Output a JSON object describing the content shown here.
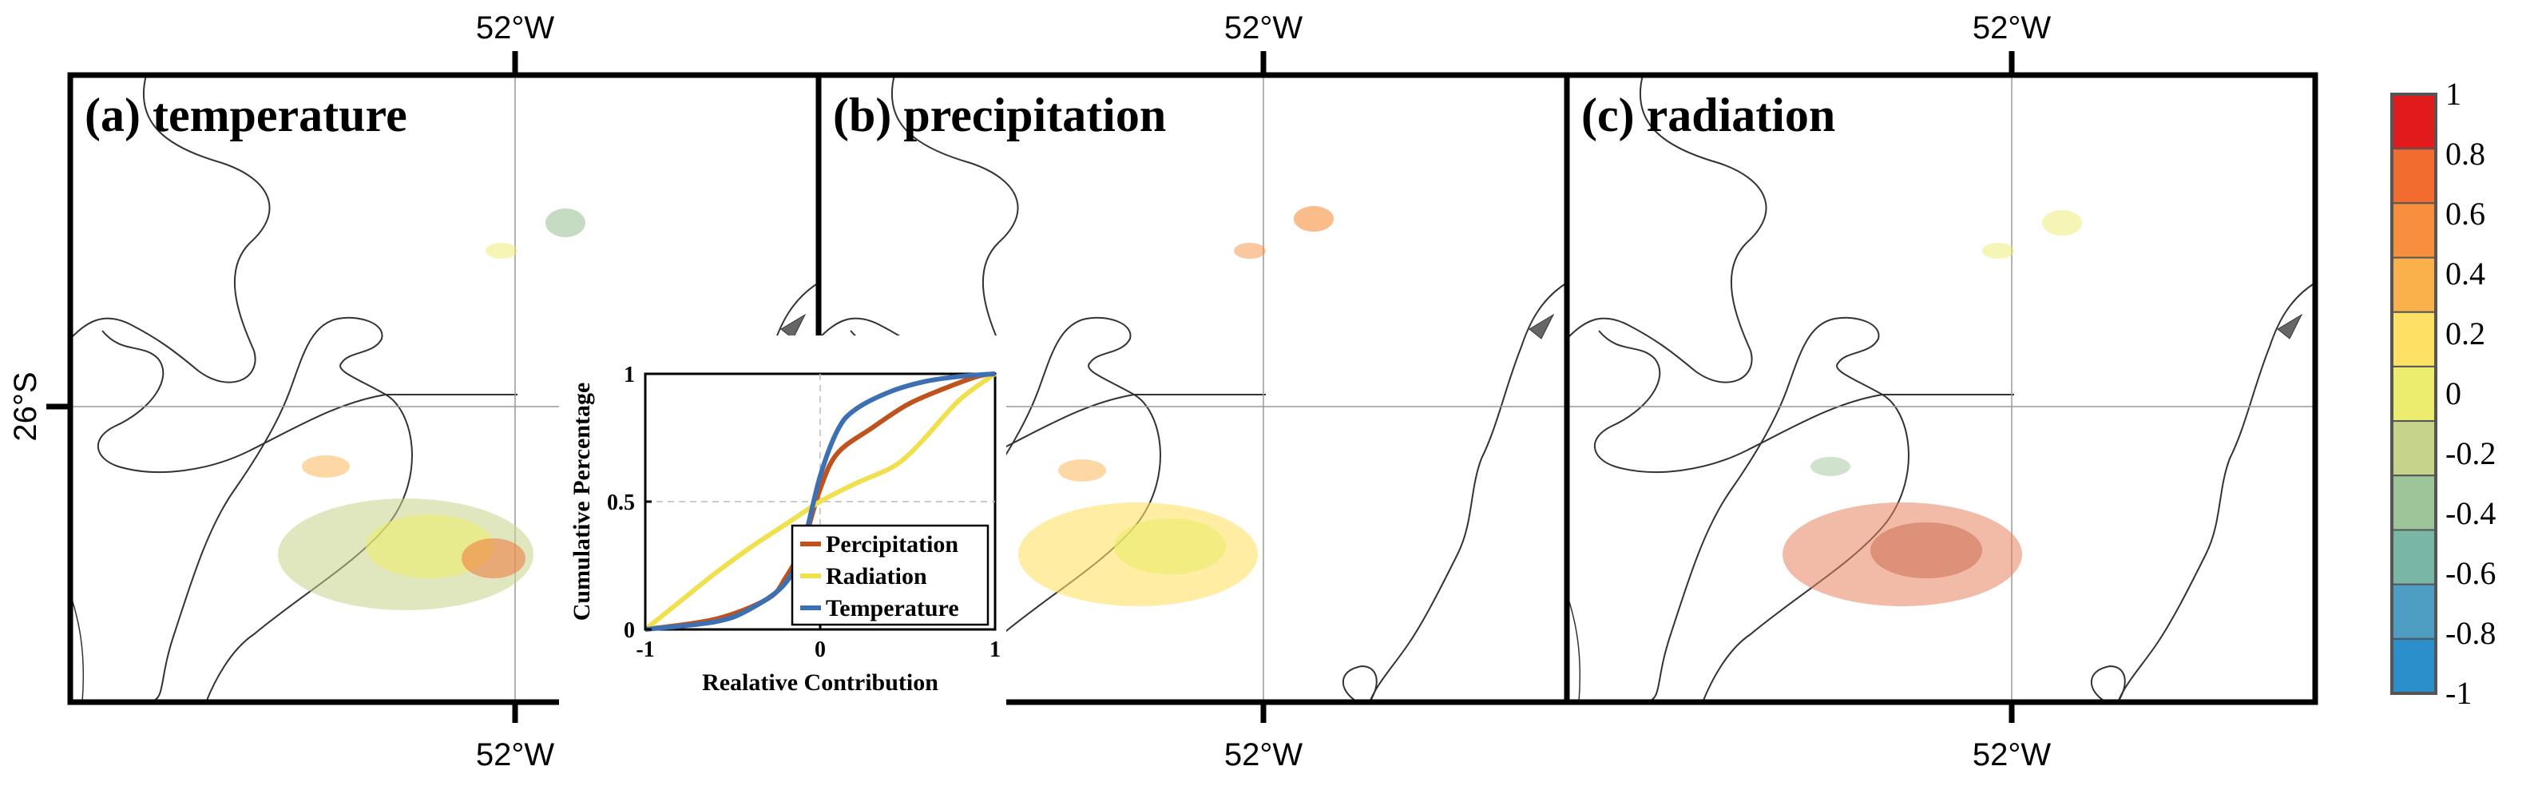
{
  "figure": {
    "longitude_label": "52°W",
    "latitude_label": "26°S",
    "panels": [
      {
        "title": "(a) temperature"
      },
      {
        "title": "(b) precipitation"
      },
      {
        "title": "(c) radiation"
      }
    ]
  },
  "colorbar": {
    "labels": [
      "1",
      "0.8",
      "0.6",
      "0.4",
      "0.2",
      "0",
      "-0.2",
      "-0.4",
      "-0.6",
      "-0.8",
      "-1"
    ],
    "colors": [
      "#e31a1c",
      "#f26b2f",
      "#f78f3d",
      "#fbb14b",
      "#fde165",
      "#ecec6e",
      "#c6d38a",
      "#9ec59a",
      "#79b6a6",
      "#4e9ec3",
      "#2b8fcb"
    ]
  },
  "colors": {
    "precipitation": "#c0531c",
    "radiation": "#f0e04e",
    "temperature": "#3d6fb3",
    "coast": "#333333",
    "grid": "#999999"
  },
  "chart_data": {
    "type": "line",
    "title": "",
    "xlabel": "Realative Contribution",
    "ylabel": "Cumulative Percentage",
    "xlim": [
      -1,
      1
    ],
    "ylim": [
      0,
      1
    ],
    "x_ticks": [
      "-1",
      "0",
      "1"
    ],
    "y_ticks": [
      "0",
      "0.5",
      "1"
    ],
    "legend_location": "bottom-right",
    "series": [
      {
        "name": "Percipitation",
        "x": [
          -1.0,
          -0.6,
          -0.3,
          -0.2,
          -0.1,
          0.0,
          0.1,
          0.3,
          0.5,
          0.7,
          0.9,
          1.0
        ],
        "y": [
          0.0,
          0.04,
          0.12,
          0.2,
          0.33,
          0.55,
          0.69,
          0.79,
          0.88,
          0.94,
          0.99,
          1.0
        ]
      },
      {
        "name": "Radiation",
        "x": [
          -1.0,
          -0.8,
          -0.6,
          -0.4,
          -0.2,
          0.0,
          0.2,
          0.4,
          0.5,
          0.6,
          0.8,
          1.0
        ],
        "y": [
          0.0,
          0.11,
          0.22,
          0.32,
          0.41,
          0.5,
          0.57,
          0.63,
          0.68,
          0.75,
          0.9,
          1.0
        ]
      },
      {
        "name": "Temperature",
        "x": [
          -1.0,
          -0.6,
          -0.4,
          -0.2,
          -0.1,
          0.0,
          0.1,
          0.2,
          0.4,
          0.6,
          0.8,
          1.0
        ],
        "y": [
          0.0,
          0.03,
          0.08,
          0.18,
          0.33,
          0.6,
          0.78,
          0.86,
          0.93,
          0.97,
          0.99,
          1.0
        ]
      }
    ]
  }
}
